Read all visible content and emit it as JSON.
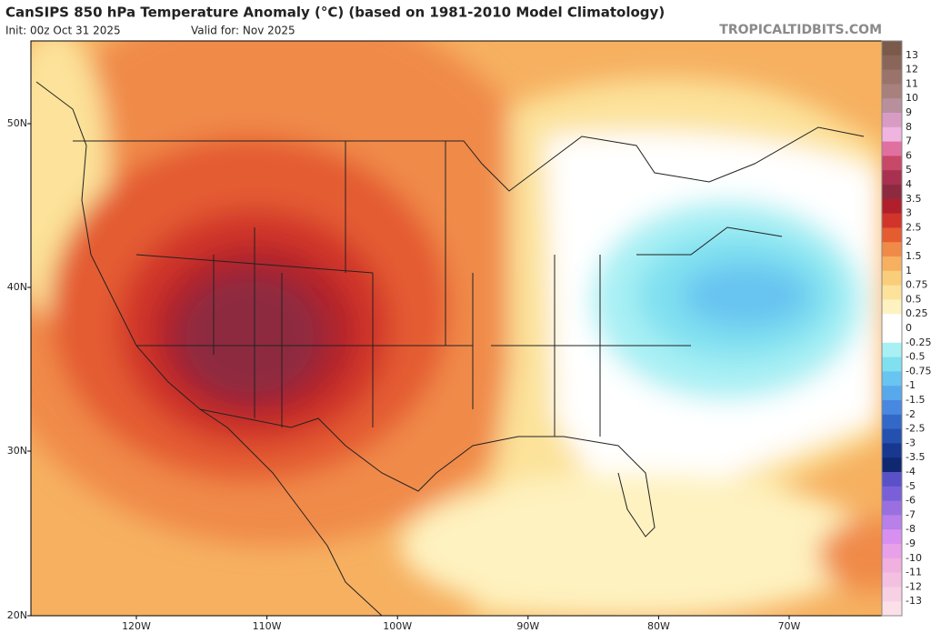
{
  "header": {
    "title": "CanSIPS 850 hPa Temperature Anomaly (°C) (based on 1981-2010 Model Climatology)",
    "init": "Init: 00z Oct 31 2025",
    "valid": "Valid for: Nov 2025",
    "source": "TROPICALTIDBITS.COM"
  },
  "axes": {
    "latitudes": [
      "50N",
      "40N",
      "30N",
      "20N"
    ],
    "longitudes": [
      "120W",
      "110W",
      "100W",
      "90W",
      "80W",
      "70W"
    ]
  },
  "colorbar": {
    "labels": [
      "13",
      "12",
      "11",
      "10",
      "9",
      "8",
      "7",
      "6",
      "5",
      "4",
      "3.5",
      "3",
      "2.5",
      "2",
      "1.5",
      "1",
      "0.75",
      "0.5",
      "0.25",
      "0",
      "-0.25",
      "-0.5",
      "-0.75",
      "-1",
      "-1.5",
      "-2",
      "-2.5",
      "-3",
      "-3.5",
      "-4",
      "-5",
      "-6",
      "-7",
      "-8",
      "-9",
      "-10",
      "-11",
      "-12",
      "-13"
    ],
    "colors": [
      "#7a5a4a",
      "#8a665a",
      "#9a746a",
      "#a8807c",
      "#b8909c",
      "#d89cc4",
      "#f0b4e0",
      "#e070a0",
      "#c84868",
      "#a83050",
      "#8e2a40",
      "#b0202c",
      "#d0342a",
      "#e45c30",
      "#f08a48",
      "#f6b060",
      "#f9ce7a",
      "#fce29a",
      "#fef2c0",
      "#ffffff",
      "#ffffff",
      "#a8f0f4",
      "#80e0f0",
      "#68c4f0",
      "#58a8ec",
      "#4888e0",
      "#3468c8",
      "#2450b0",
      "#183890",
      "#102870",
      "#5a50c8",
      "#7a60d8",
      "#9a70e0",
      "#b880e8",
      "#d890f0",
      "#e8a0e8",
      "#f0b0e0",
      "#f4c0e0",
      "#f8d0e4",
      "#fce0e8"
    ]
  }
}
